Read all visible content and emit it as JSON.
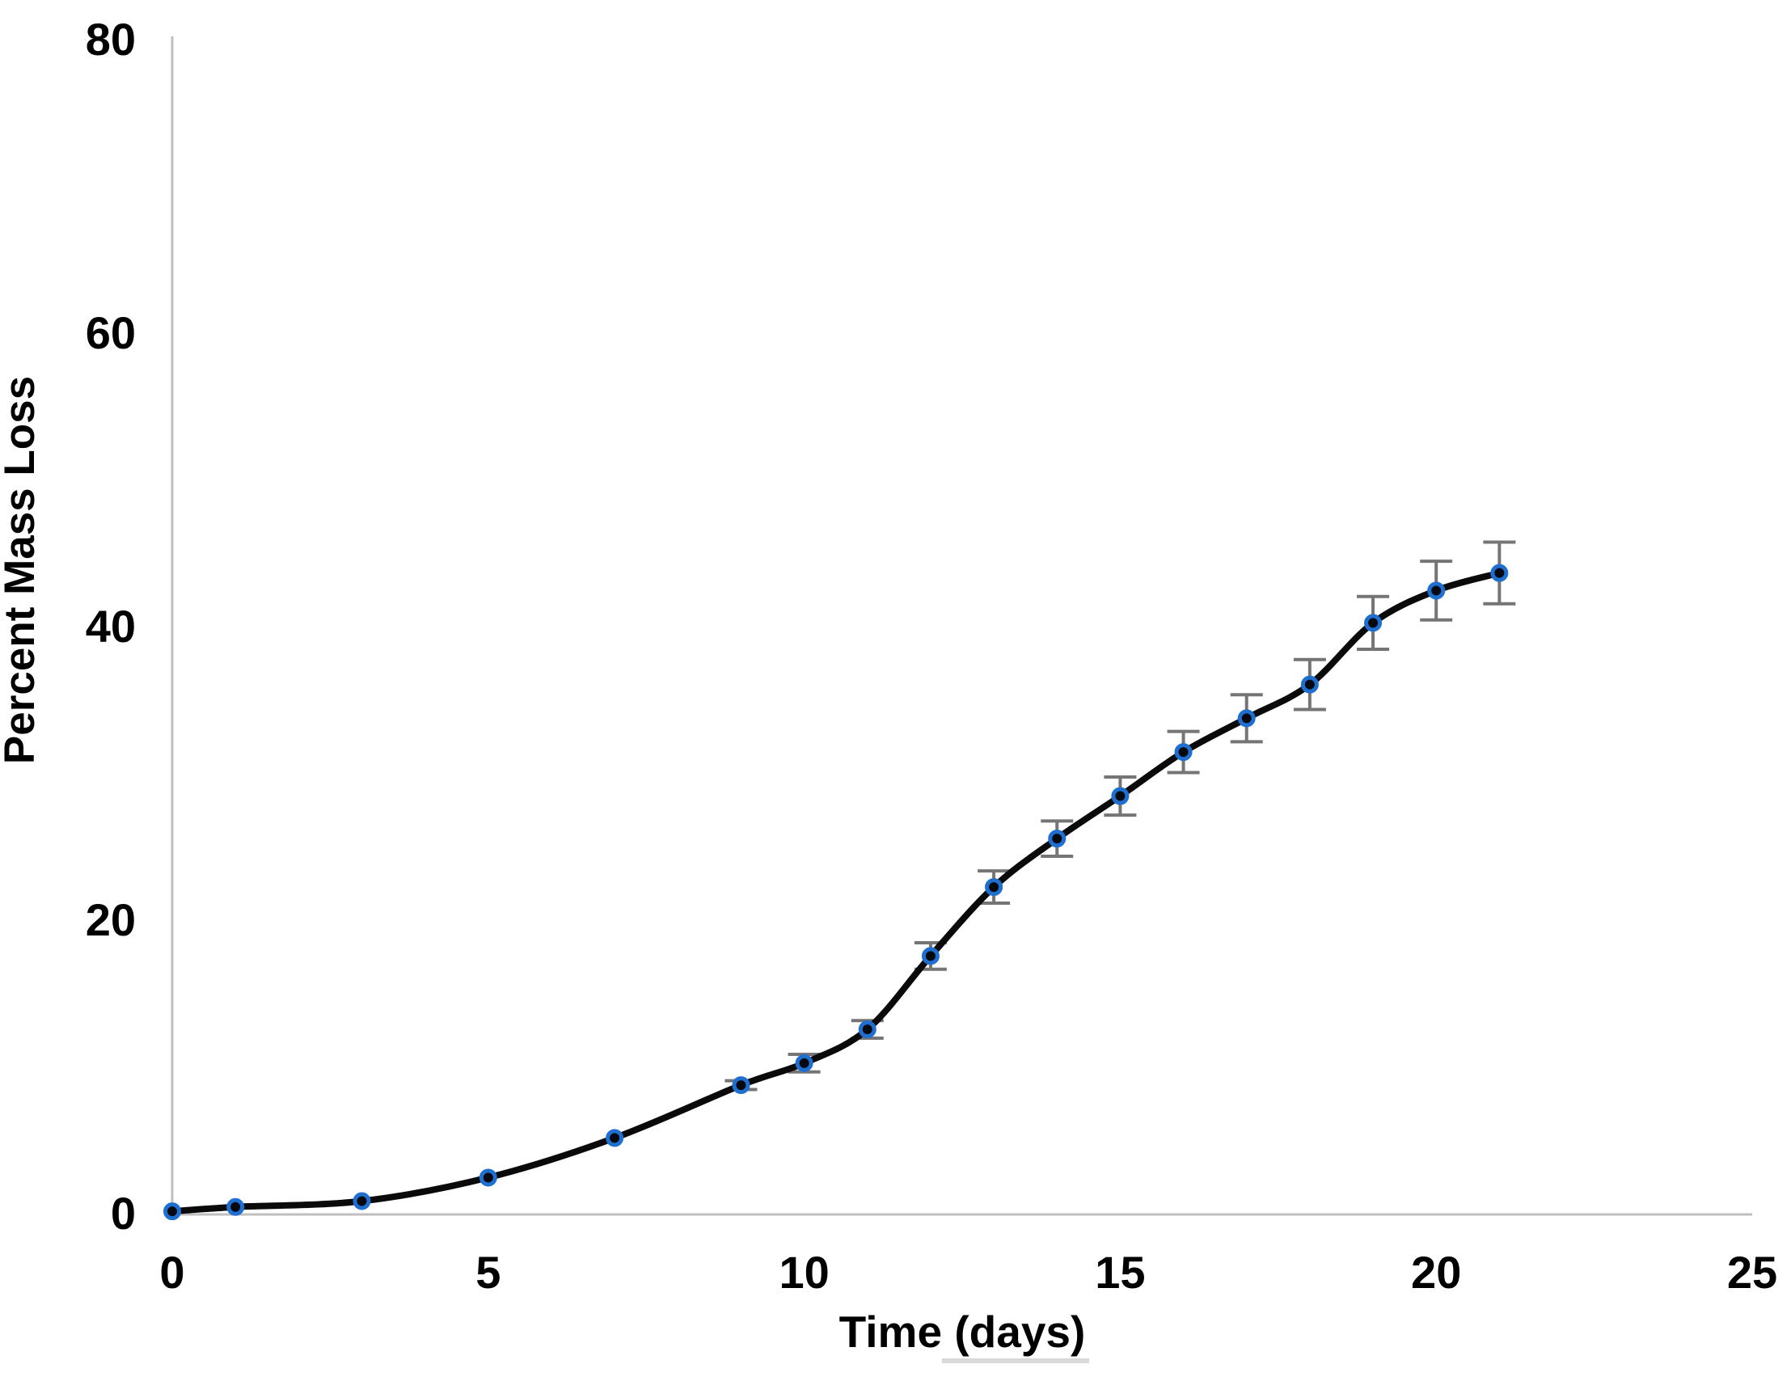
{
  "chart_data": {
    "type": "line",
    "xlabel": "Time (days)",
    "ylabel": "Percent Mass Loss",
    "x": [
      0,
      1,
      3,
      5,
      7,
      9,
      10,
      11,
      12,
      13,
      14,
      15,
      16,
      17,
      18,
      19,
      20,
      21
    ],
    "series": [
      {
        "name": "Percent Mass Loss",
        "values": [
          0.1,
          0.4,
          0.8,
          2.4,
          5.1,
          8.7,
          10.2,
          12.5,
          17.5,
          22.2,
          25.5,
          28.4,
          31.4,
          33.7,
          36.0,
          40.2,
          42.4,
          43.6
        ],
        "error_bars": [
          0,
          0,
          0,
          0,
          0,
          0.3,
          0.6,
          0.6,
          0.9,
          1.1,
          1.2,
          1.3,
          1.4,
          1.6,
          1.7,
          1.8,
          2.0,
          2.1
        ]
      }
    ],
    "xlim": [
      0,
      25
    ],
    "ylim": [
      0,
      80
    ],
    "x_ticks": [
      "0",
      "5",
      "10",
      "15",
      "20",
      "25"
    ],
    "y_ticks": [
      "0",
      "20",
      "40",
      "60",
      "80"
    ],
    "grid": "off",
    "legend": "none",
    "colors": {
      "line": "#0a0a0a",
      "marker_fill": "#06090f",
      "marker_ring": "#1f6fd0",
      "error_bar": "#757575",
      "axis_line": "#bfbfbf",
      "xlabel_underline": "#d9d9d9",
      "text": "#000000"
    }
  }
}
